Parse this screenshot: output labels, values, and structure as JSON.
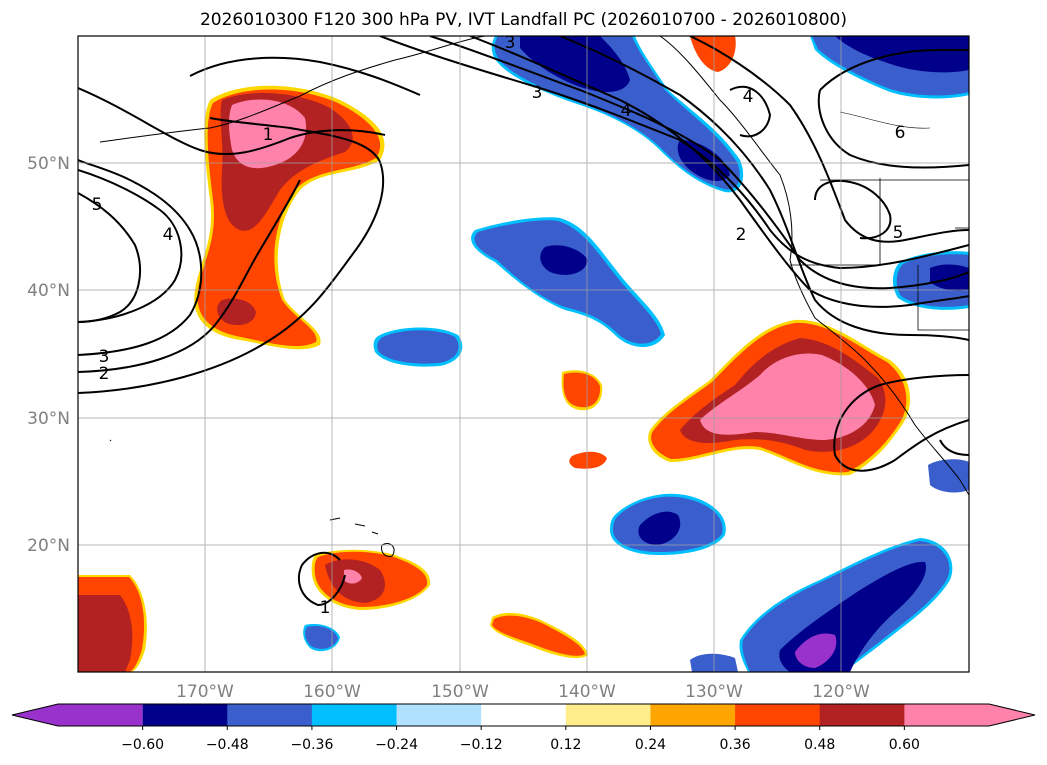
{
  "title": "2026010300 F120 300 hPa PV, IVT Landfall PC (2026010700 - 2026010800)",
  "lat_labels": [
    "50°N",
    "40°N",
    "30°N",
    "20°N"
  ],
  "lon_labels": [
    "170°W",
    "160°W",
    "150°W",
    "140°W",
    "130°W",
    "120°W"
  ],
  "contour_labels": [
    "1",
    "2",
    "3",
    "4",
    "5",
    "6",
    "1",
    "2",
    "3",
    "4",
    "5",
    "4",
    "3",
    "2",
    "1"
  ],
  "colorbar": {
    "ticks": [
      "−0.60",
      "−0.48",
      "−0.36",
      "−0.24",
      "−0.12",
      "0.12",
      "0.24",
      "0.36",
      "0.48",
      "0.60"
    ],
    "colors": [
      "#9932cc",
      "#00008b",
      "#3a5fcd",
      "#00bfff",
      "#b0e2ff",
      "#ffffff",
      "#ffec8b",
      "#ffa500",
      "#ff4500",
      "#b22222",
      "#ff82ab"
    ]
  }
}
